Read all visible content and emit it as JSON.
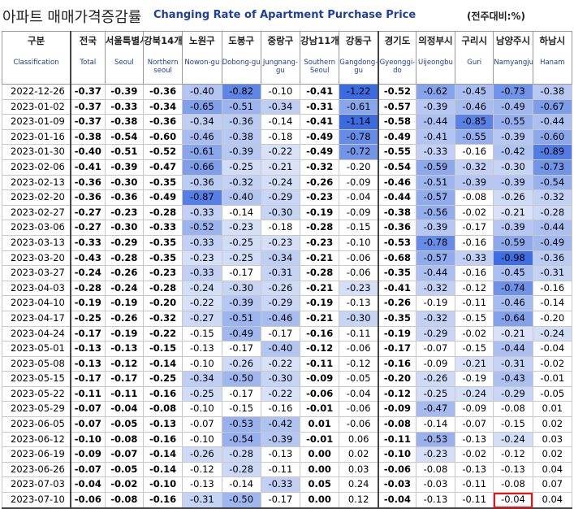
{
  "title": {
    "korean": "아파트 매매가격증감률",
    "english": "Changing Rate of Apartment Purchase Price",
    "unit": "(전주대비:%)"
  },
  "columns": [
    {
      "ko": "구분",
      "en": "Classification"
    },
    {
      "ko": "전국",
      "en": "Total"
    },
    {
      "ko": "서울특별시",
      "en": "Seoul"
    },
    {
      "ko": "강북14개",
      "en": "Northern seoul"
    },
    {
      "ko": "노원구",
      "en": "Nowon-gu"
    },
    {
      "ko": "도봉구",
      "en": "Dobong-gu"
    },
    {
      "ko": "중랑구",
      "en": "Jungnang-gu"
    },
    {
      "ko": "강남11개",
      "en": "Southern Seoul"
    },
    {
      "ko": "강동구",
      "en": "Gangdong-gu"
    },
    {
      "ko": "경기도",
      "en": "Gyeonggi-do"
    },
    {
      "ko": "의정부시",
      "en": "Uijeongbu"
    },
    {
      "ko": "구리시",
      "en": "Guri"
    },
    {
      "ko": "남양주시",
      "en": "Namyangju"
    },
    {
      "ko": "하남시",
      "en": "Hanam"
    }
  ],
  "rows": [
    {
      "date": "2022-12-26",
      "v": [
        "-0.37",
        "-0.39",
        "-0.36",
        "-0.40",
        "-0.82",
        "-0.10",
        "-0.41",
        "-1.22",
        "-0.52",
        "-0.62",
        "-0.45",
        "-0.73",
        "-0.38"
      ]
    },
    {
      "date": "2023-01-02",
      "v": [
        "-0.37",
        "-0.33",
        "-0.34",
        "-0.65",
        "-0.51",
        "-0.34",
        "-0.31",
        "-0.61",
        "-0.57",
        "-0.39",
        "-0.46",
        "-0.49",
        "-0.67"
      ]
    },
    {
      "date": "2023-01-09",
      "v": [
        "-0.37",
        "-0.38",
        "-0.36",
        "-0.34",
        "-0.36",
        "-0.14",
        "-0.41",
        "-1.14",
        "-0.58",
        "-0.44",
        "-0.85",
        "-0.55",
        "-0.44"
      ]
    },
    {
      "date": "2023-01-16",
      "v": [
        "-0.38",
        "-0.54",
        "-0.60",
        "-0.46",
        "-0.38",
        "-0.18",
        "-0.49",
        "-0.78",
        "-0.49",
        "-0.41",
        "-0.55",
        "-0.39",
        "-0.60"
      ]
    },
    {
      "date": "2023-01-30",
      "v": [
        "-0.40",
        "-0.51",
        "-0.52",
        "-0.61",
        "-0.39",
        "-0.22",
        "-0.49",
        "-0.72",
        "-0.55",
        "-0.33",
        "-0.16",
        "-0.42",
        "-0.89"
      ]
    },
    {
      "date": "2023-02-06",
      "v": [
        "-0.41",
        "-0.39",
        "-0.47",
        "-0.66",
        "-0.25",
        "-0.21",
        "-0.32",
        "-0.20",
        "-0.54",
        "-0.59",
        "-0.32",
        "-0.30",
        "-0.73"
      ]
    },
    {
      "date": "2023-02-13",
      "v": [
        "-0.36",
        "-0.30",
        "-0.35",
        "-0.36",
        "-0.32",
        "-0.24",
        "-0.26",
        "-0.09",
        "-0.46",
        "-0.51",
        "-0.39",
        "-0.39",
        "-0.54"
      ]
    },
    {
      "date": "2023-02-20",
      "v": [
        "-0.36",
        "-0.36",
        "-0.49",
        "-0.87",
        "-0.40",
        "-0.29",
        "-0.23",
        "-0.04",
        "-0.44",
        "-0.57",
        "-0.08",
        "-0.26",
        "-0.32"
      ]
    },
    {
      "date": "2023-02-27",
      "v": [
        "-0.27",
        "-0.23",
        "-0.28",
        "-0.33",
        "-0.14",
        "-0.30",
        "-0.19",
        "-0.09",
        "-0.38",
        "-0.56",
        "-0.02",
        "-0.21",
        "-0.28"
      ]
    },
    {
      "date": "2023-03-06",
      "v": [
        "-0.27",
        "-0.30",
        "-0.33",
        "-0.52",
        "-0.23",
        "-0.18",
        "-0.28",
        "-0.15",
        "-0.36",
        "-0.39",
        "-0.17",
        "-0.39",
        "-0.44"
      ]
    },
    {
      "date": "2023-03-13",
      "v": [
        "-0.33",
        "-0.29",
        "-0.35",
        "-0.33",
        "-0.25",
        "-0.23",
        "-0.23",
        "-0.10",
        "-0.53",
        "-0.78",
        "-0.16",
        "-0.59",
        "-0.49"
      ]
    },
    {
      "date": "2023-03-20",
      "v": [
        "-0.43",
        "-0.28",
        "-0.35",
        "-0.23",
        "-0.25",
        "-0.34",
        "-0.21",
        "-0.06",
        "-0.68",
        "-0.57",
        "-0.33",
        "-0.98",
        "-0.36"
      ]
    },
    {
      "date": "2023-03-27",
      "v": [
        "-0.24",
        "-0.26",
        "-0.23",
        "-0.33",
        "-0.17",
        "-0.31",
        "-0.28",
        "-0.06",
        "-0.35",
        "-0.44",
        "-0.16",
        "-0.45",
        "-0.31"
      ]
    },
    {
      "date": "2023-04-03",
      "v": [
        "-0.28",
        "-0.24",
        "-0.28",
        "-0.24",
        "-0.30",
        "-0.26",
        "-0.21",
        "-0.23",
        "-0.41",
        "-0.32",
        "-0.12",
        "-0.74",
        "-0.16"
      ]
    },
    {
      "date": "2023-04-10",
      "v": [
        "-0.19",
        "-0.19",
        "-0.20",
        "-0.22",
        "-0.39",
        "-0.29",
        "-0.19",
        "-0.13",
        "-0.26",
        "-0.19",
        "-0.11",
        "-0.46",
        "-0.14"
      ]
    },
    {
      "date": "2023-04-17",
      "v": [
        "-0.25",
        "-0.26",
        "-0.32",
        "-0.27",
        "-0.51",
        "-0.46",
        "-0.21",
        "-0.30",
        "-0.35",
        "-0.32",
        "-0.15",
        "-0.64",
        "-0.20"
      ]
    },
    {
      "date": "2023-04-24",
      "v": [
        "-0.17",
        "-0.19",
        "-0.22",
        "-0.15",
        "-0.49",
        "-0.17",
        "-0.16",
        "-0.11",
        "-0.19",
        "-0.29",
        "-0.02",
        "-0.21",
        "-0.24"
      ]
    },
    {
      "date": "2023-05-01",
      "v": [
        "-0.13",
        "-0.13",
        "-0.15",
        "-0.13",
        "-0.17",
        "-0.40",
        "-0.12",
        "-0.06",
        "-0.17",
        "-0.07",
        "-0.15",
        "-0.44",
        "-0.04"
      ]
    },
    {
      "date": "2023-05-08",
      "v": [
        "-0.13",
        "-0.12",
        "-0.14",
        "-0.10",
        "-0.26",
        "-0.22",
        "-0.11",
        "-0.12",
        "-0.16",
        "-0.09",
        "-0.21",
        "-0.31",
        "-0.02"
      ]
    },
    {
      "date": "2023-05-15",
      "v": [
        "-0.17",
        "-0.17",
        "-0.25",
        "-0.34",
        "-0.50",
        "-0.30",
        "-0.09",
        "-0.05",
        "-0.20",
        "-0.26",
        "-0.19",
        "-0.43",
        "-0.01"
      ]
    },
    {
      "date": "2023-05-22",
      "v": [
        "-0.11",
        "-0.11",
        "-0.16",
        "-0.25",
        "-0.17",
        "-0.22",
        "-0.06",
        "-0.04",
        "-0.12",
        "-0.25",
        "-0.24",
        "-0.29",
        "-0.05"
      ]
    },
    {
      "date": "2023-05-29",
      "v": [
        "-0.07",
        "-0.04",
        "-0.08",
        "-0.10",
        "-0.15",
        "-0.16",
        "-0.01",
        "-0.06",
        "-0.09",
        "-0.47",
        "-0.09",
        "-0.08",
        "0.01"
      ]
    },
    {
      "date": "2023-06-05",
      "v": [
        "-0.07",
        "-0.05",
        "-0.13",
        "-0.07",
        "-0.53",
        "-0.42",
        "0.01",
        "-0.06",
        "-0.08",
        "-0.14",
        "-0.07",
        "-0.15",
        "0.02"
      ]
    },
    {
      "date": "2023-06-12",
      "v": [
        "-0.10",
        "-0.08",
        "-0.16",
        "-0.10",
        "-0.54",
        "-0.39",
        "-0.01",
        "0.06",
        "-0.11",
        "-0.53",
        "-0.13",
        "-0.24",
        "0.03"
      ]
    },
    {
      "date": "2023-06-19",
      "v": [
        "-0.09",
        "-0.07",
        "-0.14",
        "-0.26",
        "-0.28",
        "-0.13",
        "0.00",
        "0.02",
        "-0.10",
        "-0.23",
        "-0.02",
        "-0.12",
        "0.02"
      ]
    },
    {
      "date": "2023-06-26",
      "v": [
        "-0.07",
        "-0.05",
        "-0.14",
        "-0.12",
        "-0.28",
        "-0.11",
        "0.00",
        "0.03",
        "-0.06",
        "-0.08",
        "-0.13",
        "-0.13",
        "0.04"
      ]
    },
    {
      "date": "2023-07-03",
      "v": [
        "-0.04",
        "-0.02",
        "-0.10",
        "-0.13",
        "-0.14",
        "-0.33",
        "0.05",
        "0.24",
        "-0.03",
        "-0.03",
        "-0.11",
        "-0.08",
        "0.07"
      ]
    },
    {
      "date": "2023-07-10",
      "v": [
        "-0.06",
        "-0.08",
        "-0.16",
        "-0.31",
        "-0.50",
        "-0.17",
        "0.00",
        "0.12",
        "-0.04",
        "-0.13",
        "-0.11",
        "-0.04",
        "0.04"
      ]
    }
  ],
  "highlight": {
    "row_date": "2023-07-10",
    "column": "남양주시",
    "border_color": "#e11111"
  },
  "colors": {
    "header_en": "#1f3f9f",
    "heat_dark": "#3a6be0",
    "heat_light": "#dbe4f8"
  }
}
